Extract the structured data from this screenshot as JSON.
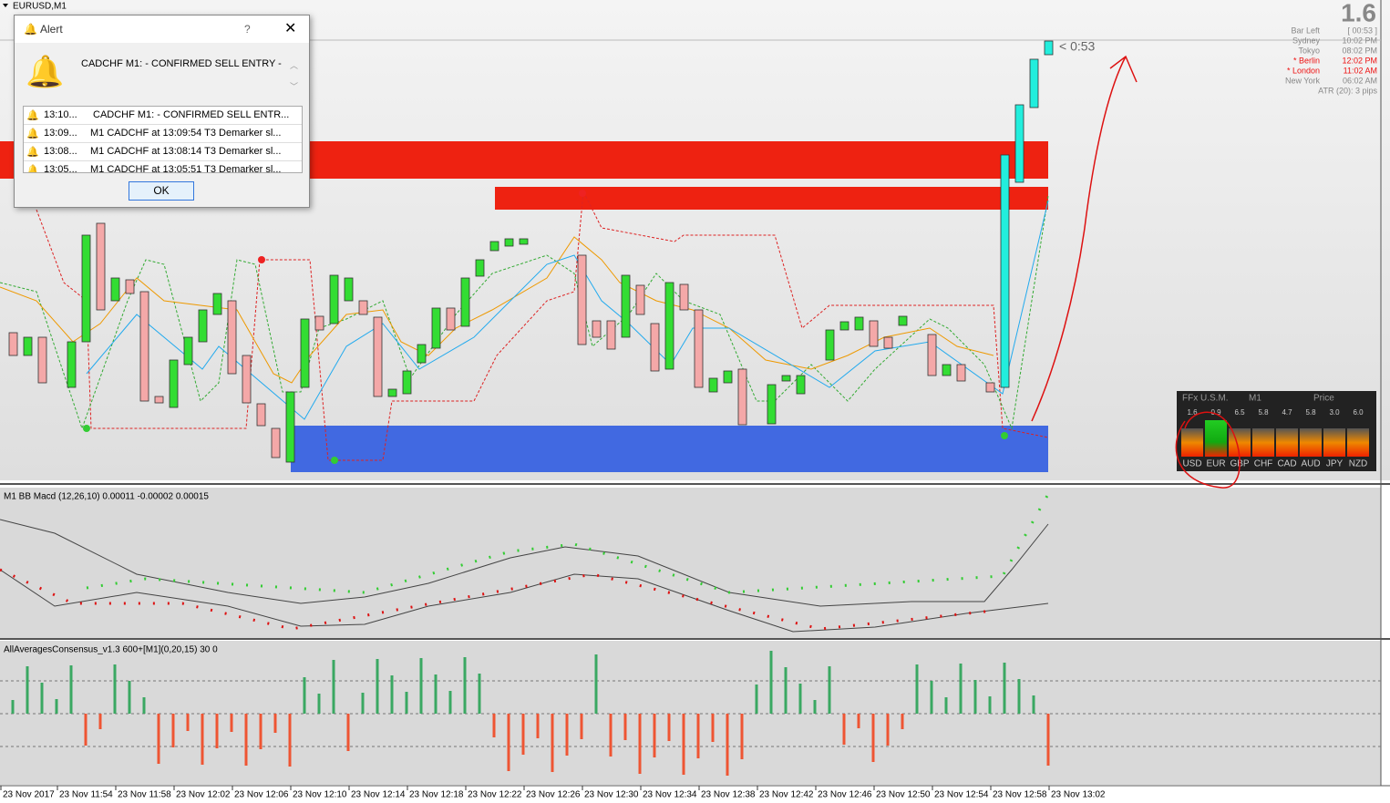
{
  "chart": {
    "symbol": "EURUSD,M1",
    "price_big": "1.6",
    "timer": "< 0:53",
    "info_panel": [
      [
        "Bar Left",
        "[ 00:53 ]"
      ],
      [
        "Sydney",
        "10:02 PM"
      ],
      [
        "Tokyo",
        "08:02 PM"
      ],
      [
        "* Berlin",
        "12:02 PM"
      ],
      [
        "* London",
        "11:02 AM"
      ],
      [
        "New York",
        "06:02 AM"
      ]
    ],
    "atr": "ATR (20): 3 pips"
  },
  "alert": {
    "title": "Alert",
    "help": "?",
    "message": "CADCHF M1:  -  CONFIRMED SELL ENTRY  -",
    "rows": [
      [
        "13:10...",
        "CADCHF M1:  -  CONFIRMED SELL ENTR..."
      ],
      [
        "13:09...",
        "M1 CADCHF at 13:09:54 T3 Demarker  sl..."
      ],
      [
        "13:08...",
        "M1 CADCHF at 13:08:14 T3 Demarker  sl..."
      ],
      [
        "13:05...",
        "M1 CADCHF at 13:05:51 T3 Demarker  sl..."
      ]
    ],
    "ok": "OK"
  },
  "strength_panel": {
    "headers": [
      "FFx U.S.M.",
      "M1",
      "Price"
    ],
    "values": [
      "1.6",
      "0.9",
      "6.5",
      "5.8",
      "4.7",
      "5.8",
      "3.0",
      "6.0"
    ],
    "currencies": [
      "USD",
      "EUR",
      "GBP",
      "CHF",
      "CAD",
      "AUD",
      "JPY",
      "NZD"
    ]
  },
  "indicators": [
    "M1 BB Macd (12,26,10) 0.00011 -0.00002 0.00015",
    "AllAveragesConsensus_v1.3 600+[M1](0,20,15) 30 0"
  ],
  "time_axis": [
    "23 Nov 2017",
    "23 Nov 11:54",
    "23 Nov 11:58",
    "23 Nov 12:02",
    "23 Nov 12:06",
    "23 Nov 12:10",
    "23 Nov 12:14",
    "23 Nov 12:18",
    "23 Nov 12:22",
    "23 Nov 12:26",
    "23 Nov 12:30",
    "23 Nov 12:34",
    "23 Nov 12:38",
    "23 Nov 12:42",
    "23 Nov 12:46",
    "23 Nov 12:50",
    "23 Nov 12:54",
    "23 Nov 12:58",
    "23 Nov 13:02"
  ]
}
